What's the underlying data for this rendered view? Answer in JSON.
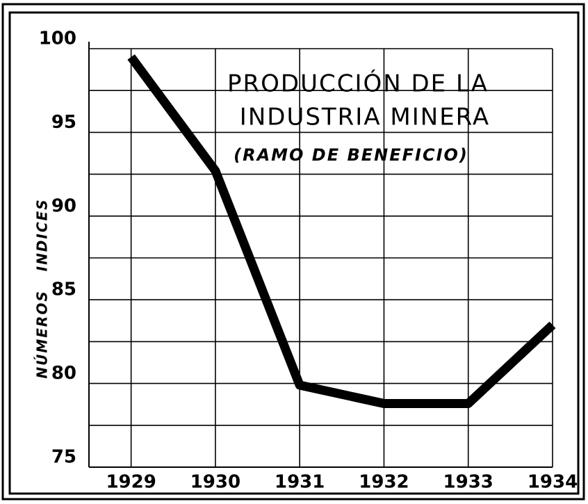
{
  "chart_data": {
    "type": "line",
    "title": [
      "PRODUCCIÓN DE LA",
      "INDUSTRIA MINERA"
    ],
    "subtitle": "(RAMO DE BENEFICIO)",
    "y_label": "NÚMEROS   INDICES",
    "x": [
      1929,
      1930,
      1931,
      1932,
      1933,
      1934
    ],
    "series": [
      {
        "color": "#000000",
        "values": [
          99.5,
          92.7,
          79.9,
          78.8,
          78.8,
          83.5
        ]
      }
    ],
    "xlim": [
      1928.5,
      1934
    ],
    "xticks": [
      1929,
      1930,
      1931,
      1932,
      1933,
      1934
    ],
    "ylim": [
      75,
      100
    ],
    "yticks": [
      75,
      80,
      85,
      90,
      95,
      100
    ],
    "y_minor_ticks": [
      77.5,
      82.5,
      87.5,
      92.5,
      97.5
    ],
    "grid": true
  }
}
